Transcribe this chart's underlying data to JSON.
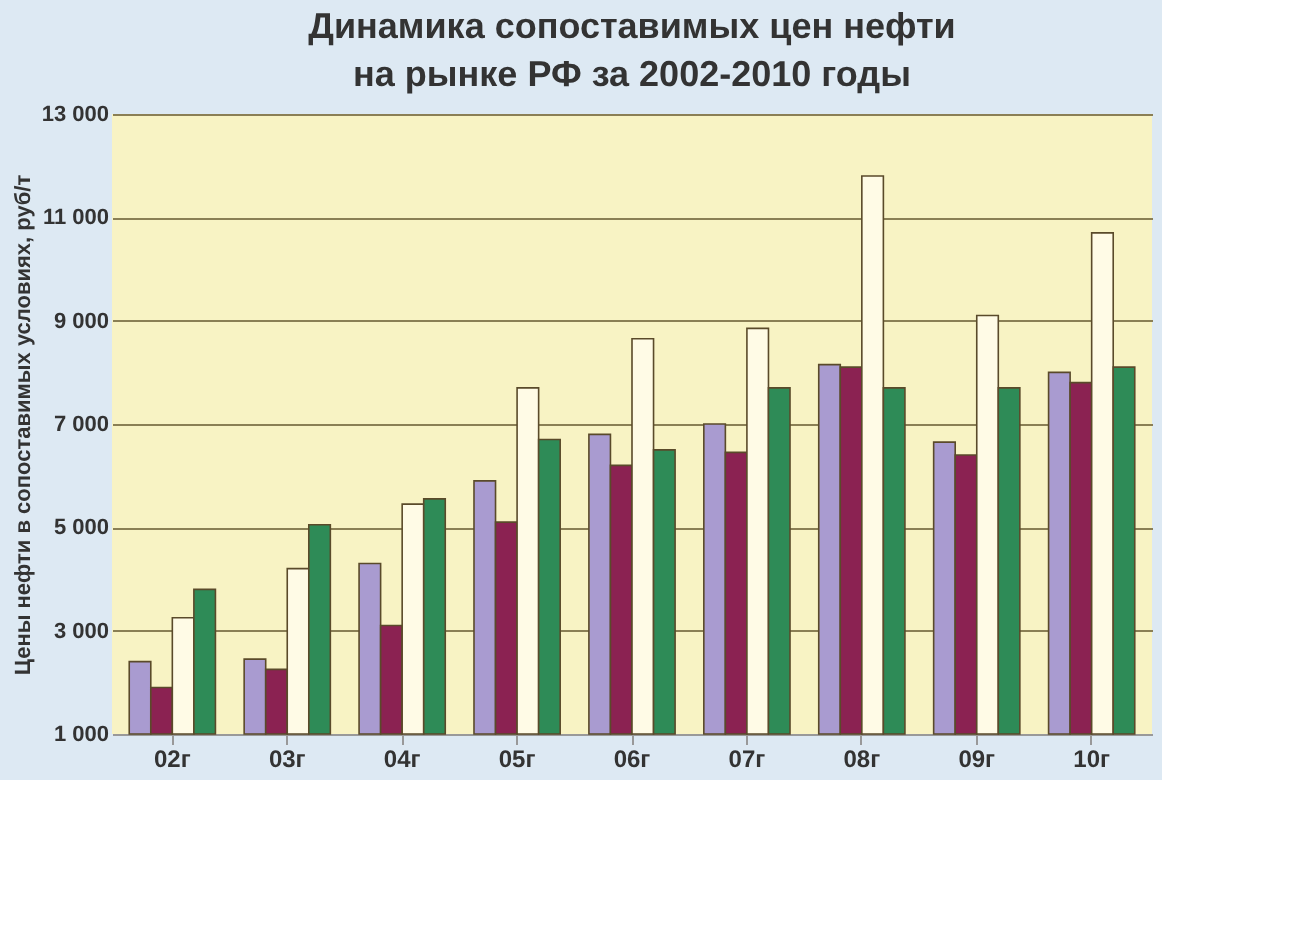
{
  "chart_data": {
    "type": "bar",
    "title": "Динамика сопоставимых цен нефти на рынке РФ за 2002-2010 годы",
    "ylabel": "Цены нефти в сопоставимых условиях, руб/т",
    "categories": [
      "02г",
      "03г",
      "04г",
      "05г",
      "06г",
      "07г",
      "08г",
      "09г",
      "10г"
    ],
    "series": [
      {
        "color": "#a99bd0",
        "values": [
          2400,
          2450,
          4300,
          5900,
          6800,
          7000,
          8150,
          6650,
          8000
        ]
      },
      {
        "color": "#8b2252",
        "values": [
          1900,
          2250,
          3100,
          5100,
          6200,
          6450,
          8100,
          6400,
          7800
        ]
      },
      {
        "color": "#fffbe6",
        "values": [
          3250,
          4200,
          5450,
          7700,
          8650,
          8850,
          11800,
          9100,
          10700
        ]
      },
      {
        "color": "#2e8b57",
        "values": [
          3800,
          5050,
          5550,
          6700,
          6500,
          7700,
          7700,
          7700,
          8100
        ]
      }
    ],
    "ylim": [
      1000,
      13000
    ],
    "yticks": [
      {
        "value": 1000,
        "label": "1 000"
      },
      {
        "value": 3000,
        "label": "3 000"
      },
      {
        "value": 5000,
        "label": "5 000"
      },
      {
        "value": 7000,
        "label": "7 000"
      },
      {
        "value": 9000,
        "label": "9 000"
      },
      {
        "value": 11000,
        "label": "11 000"
      },
      {
        "value": 13000,
        "label": "13 000"
      }
    ],
    "grid": "y"
  }
}
